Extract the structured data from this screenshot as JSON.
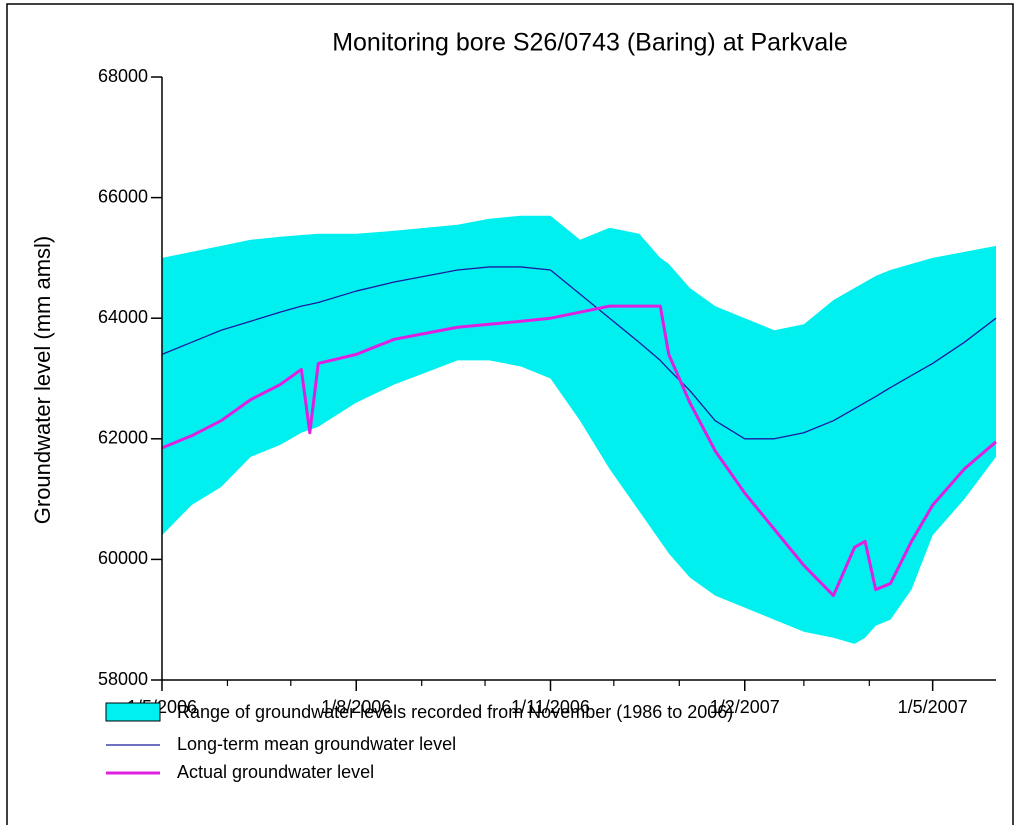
{
  "chart_data": {
    "type": "band-line",
    "title": "Monitoring bore S26/0743 (Baring) at Parkvale",
    "y_label": "Groundwater level (mm amsl)",
    "x": [
      "2006-05-01",
      "2006-05-15",
      "2006-05-29",
      "2006-06-12",
      "2006-06-26",
      "2006-07-06",
      "2006-07-10",
      "2006-07-14",
      "2006-08-01",
      "2006-08-19",
      "2006-09-03",
      "2006-09-18",
      "2006-10-03",
      "2006-10-18",
      "2006-11-01",
      "2006-11-15",
      "2006-11-29",
      "2006-12-13",
      "2006-12-23",
      "2006-12-27",
      "2007-01-06",
      "2007-01-18",
      "2007-02-01",
      "2007-02-15",
      "2007-03-01",
      "2007-03-15",
      "2007-03-25",
      "2007-03-30",
      "2007-04-04",
      "2007-04-11",
      "2007-04-21",
      "2007-05-01",
      "2007-05-16",
      "2007-05-31"
    ],
    "band": {
      "name": "Range of groundwater levels recorded from November (1986 to 2006)",
      "color": "#00f0f0",
      "low": [
        60400,
        60900,
        61200,
        61700,
        61900,
        62100,
        62150,
        62200,
        62600,
        62900,
        63100,
        63300,
        63300,
        63200,
        63000,
        62300,
        61500,
        60800,
        60300,
        60100,
        59700,
        59400,
        59200,
        59000,
        58800,
        58700,
        58600,
        58700,
        58900,
        59000,
        59500,
        60400,
        61000,
        61700
      ],
      "high": [
        65000,
        65100,
        65200,
        65300,
        65350,
        65380,
        65390,
        65400,
        65400,
        65450,
        65500,
        65550,
        65650,
        65700,
        65700,
        65300,
        65500,
        65400,
        65000,
        64900,
        64500,
        64200,
        64000,
        63800,
        63900,
        64300,
        64500,
        64600,
        64700,
        64800,
        64900,
        65000,
        65100,
        65200
      ]
    },
    "series": [
      {
        "name": "Long-term mean groundwater level",
        "color": "#1c1ca0",
        "width": 1.3,
        "values": [
          63400,
          63600,
          63800,
          63950,
          64100,
          64200,
          64230,
          64260,
          64450,
          64600,
          64700,
          64800,
          64850,
          64850,
          64800,
          64400,
          64000,
          63600,
          63300,
          63150,
          62800,
          62300,
          62000,
          62000,
          62100,
          62300,
          62500,
          62600,
          62700,
          62850,
          63050,
          63250,
          63600,
          64000
        ]
      },
      {
        "name": "Actual groundwater level",
        "color": "#e020e0",
        "width": 3,
        "values": [
          61850,
          62050,
          62300,
          62650,
          62900,
          63150,
          62100,
          63250,
          63400,
          63650,
          63750,
          63850,
          63900,
          63950,
          64000,
          64100,
          64200,
          64200,
          64200,
          63400,
          62600,
          61800,
          61100,
          60500,
          59900,
          59400,
          60200,
          60300,
          59500,
          59600,
          60300,
          60900,
          61500,
          61950
        ]
      }
    ],
    "xlim": [
      "2006-05-01",
      "2007-05-31"
    ],
    "xticks": [
      {
        "value": "2006-05-01",
        "label": "1/5/2006"
      },
      {
        "value": "2006-08-01",
        "label": "1/8/2006"
      },
      {
        "value": "2006-11-01",
        "label": "1/11/2006"
      },
      {
        "value": "2007-02-01",
        "label": "1/2/2007"
      },
      {
        "value": "2007-05-01",
        "label": "1/5/2007"
      }
    ],
    "xminorticks": [
      "2006-06-01",
      "2006-07-01",
      "2006-09-01",
      "2006-10-01",
      "2006-12-01",
      "2007-01-01",
      "2007-03-01",
      "2007-04-01"
    ],
    "ylim": [
      58000,
      68000
    ],
    "yticks": [
      58000,
      60000,
      62000,
      64000,
      66000,
      68000
    ]
  }
}
